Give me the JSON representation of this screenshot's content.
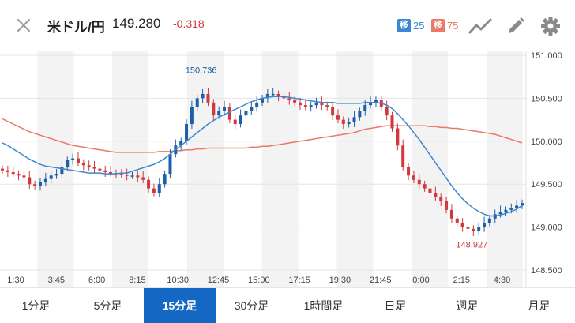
{
  "header": {
    "pair": "米ドル/円",
    "price": "149.280",
    "change": "-0.318",
    "ma_short": {
      "badge": "移",
      "value": "25",
      "color": "#3b87d1"
    },
    "ma_long": {
      "badge": "移",
      "value": "75",
      "color": "#ea7a65"
    }
  },
  "colors": {
    "up": "#1f5fa8",
    "down": "#d0393e",
    "ma_short": "#3b87d1",
    "ma_long": "#ea7a65",
    "active_tab": "#1467c2"
  },
  "tabs": [
    {
      "label": "1分足",
      "active": false
    },
    {
      "label": "5分足",
      "active": false
    },
    {
      "label": "15分足",
      "active": true
    },
    {
      "label": "30分足",
      "active": false
    },
    {
      "label": "1時間足",
      "active": false
    },
    {
      "label": "日足",
      "active": false
    },
    {
      "label": "週足",
      "active": false
    },
    {
      "label": "月足",
      "active": false
    }
  ],
  "chart_data": {
    "type": "candlestick",
    "ylim": [
      148.5,
      151.0
    ],
    "yticks": [
      "151.000",
      "150.500",
      "150.000",
      "149.500",
      "149.000",
      "148.500"
    ],
    "xticks": [
      "1:30",
      "3:45",
      "6:00",
      "8:15",
      "10:30",
      "12:45",
      "15:00",
      "17:15",
      "19:30",
      "21:45",
      "0:00",
      "2:15",
      "4:30"
    ],
    "high_label": "150.736",
    "low_label": "148.927",
    "close": [
      149.66,
      149.64,
      149.62,
      149.6,
      149.58,
      149.5,
      149.48,
      149.52,
      149.56,
      149.6,
      149.62,
      149.7,
      149.78,
      149.8,
      149.75,
      149.72,
      149.7,
      149.68,
      149.66,
      149.64,
      149.63,
      149.62,
      149.61,
      149.6,
      149.6,
      149.58,
      149.55,
      149.45,
      149.4,
      149.5,
      149.62,
      149.85,
      149.95,
      150.0,
      150.2,
      150.4,
      150.5,
      150.55,
      150.45,
      150.3,
      150.35,
      150.4,
      150.25,
      150.2,
      150.3,
      150.35,
      150.4,
      150.45,
      150.5,
      150.55,
      150.55,
      150.52,
      150.5,
      150.48,
      150.45,
      150.42,
      150.4,
      150.42,
      150.45,
      150.42,
      150.4,
      150.3,
      150.25,
      150.2,
      150.22,
      150.28,
      150.35,
      150.42,
      150.45,
      150.48,
      150.4,
      150.3,
      150.15,
      149.95,
      149.7,
      149.6,
      149.55,
      149.5,
      149.45,
      149.4,
      149.35,
      149.3,
      149.2,
      149.1,
      149.05,
      149.0,
      148.98,
      148.95,
      149.0,
      149.05,
      149.1,
      149.15,
      149.18,
      149.2,
      149.22,
      149.25,
      149.28
    ],
    "ma25": [
      149.98,
      149.95,
      149.91,
      149.87,
      149.83,
      149.79,
      149.76,
      149.73,
      149.71,
      149.7,
      149.69,
      149.68,
      149.67,
      149.66,
      149.65,
      149.64,
      149.63,
      149.63,
      149.63,
      149.62,
      149.62,
      149.62,
      149.63,
      149.63,
      149.65,
      149.67,
      149.69,
      149.71,
      149.73,
      149.76,
      149.8,
      149.85,
      149.9,
      149.95,
      150.0,
      150.05,
      150.1,
      150.15,
      150.2,
      150.24,
      150.28,
      150.31,
      150.34,
      150.37,
      150.4,
      150.43,
      150.46,
      150.48,
      150.5,
      150.51,
      150.52,
      150.52,
      150.52,
      150.51,
      150.5,
      150.49,
      150.48,
      150.47,
      150.46,
      150.45,
      150.45,
      150.45,
      150.44,
      150.44,
      150.44,
      150.44,
      150.44,
      150.45,
      150.45,
      150.45,
      150.44,
      150.42,
      150.38,
      150.32,
      150.25,
      150.18,
      150.1,
      150.02,
      149.93,
      149.84,
      149.75,
      149.66,
      149.57,
      149.48,
      149.4,
      149.33,
      149.27,
      149.22,
      149.18,
      149.15,
      149.13,
      149.13,
      149.14,
      149.16,
      149.18,
      149.21,
      149.25
    ],
    "ma75": [
      150.26,
      150.23,
      150.2,
      150.17,
      150.14,
      150.11,
      150.09,
      150.07,
      150.05,
      150.03,
      150.01,
      149.99,
      149.97,
      149.95,
      149.94,
      149.93,
      149.92,
      149.91,
      149.9,
      149.89,
      149.88,
      149.87,
      149.87,
      149.87,
      149.87,
      149.87,
      149.87,
      149.87,
      149.87,
      149.88,
      149.88,
      149.88,
      149.89,
      149.89,
      149.9,
      149.9,
      149.91,
      149.91,
      149.92,
      149.92,
      149.92,
      149.92,
      149.92,
      149.92,
      149.92,
      149.92,
      149.93,
      149.93,
      149.94,
      149.94,
      149.95,
      149.96,
      149.97,
      149.98,
      149.99,
      150.0,
      150.01,
      150.02,
      150.03,
      150.04,
      150.05,
      150.06,
      150.07,
      150.08,
      150.09,
      150.1,
      150.12,
      150.14,
      150.15,
      150.16,
      150.17,
      150.18,
      150.18,
      150.18,
      150.18,
      150.18,
      150.18,
      150.18,
      150.18,
      150.17,
      150.17,
      150.16,
      150.16,
      150.15,
      150.15,
      150.14,
      150.13,
      150.12,
      150.11,
      150.1,
      150.09,
      150.08,
      150.06,
      150.04,
      150.02,
      150.0,
      149.98
    ]
  }
}
